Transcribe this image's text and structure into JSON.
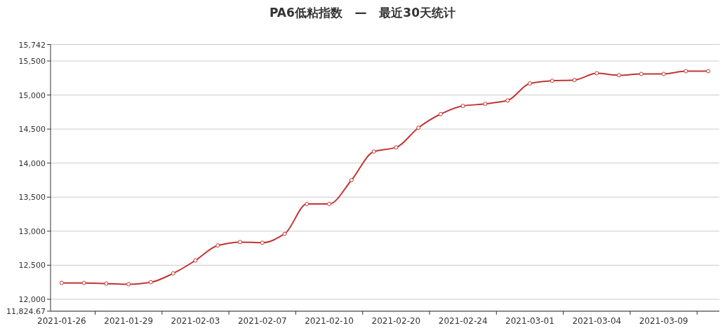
{
  "chart_data": {
    "type": "line",
    "title": "PA6低粘指数   —   最近30天统计",
    "categories": [
      "2021-01-26",
      null,
      null,
      "2021-01-29",
      null,
      null,
      "2021-02-03",
      null,
      null,
      "2021-02-07",
      null,
      null,
      "2021-02-10",
      null,
      null,
      "2021-02-20",
      null,
      null,
      "2021-02-24",
      null,
      null,
      "2021-03-01",
      null,
      null,
      "2021-03-04",
      null,
      null,
      "2021-03-09",
      null,
      null
    ],
    "series": [
      {
        "color": "#c23531",
        "values": [
          12240,
          12240,
          12230,
          12220,
          12250,
          12380,
          12570,
          12790,
          12840,
          12830,
          12960,
          13400,
          13400,
          13750,
          14170,
          14230,
          14520,
          14720,
          14840,
          14870,
          14920,
          15170,
          15210,
          15220,
          15320,
          15290,
          15310,
          15310,
          15350,
          15350
        ]
      }
    ],
    "ylim": [
      11824.67,
      15742
    ],
    "yticks": [
      {
        "value": 11824.67,
        "label": "11,824.67"
      },
      {
        "value": 12000,
        "label": "12,000"
      },
      {
        "value": 12500,
        "label": "12,500"
      },
      {
        "value": 13000,
        "label": "13,000"
      },
      {
        "value": 13500,
        "label": "13,500"
      },
      {
        "value": 14000,
        "label": "14,000"
      },
      {
        "value": 14500,
        "label": "14,500"
      },
      {
        "value": 15000,
        "label": "15,000"
      },
      {
        "value": 15500,
        "label": "15,500"
      },
      {
        "value": 15742,
        "label": "15,742"
      }
    ],
    "grid": "y",
    "marker": "circle",
    "line_style": "solid"
  }
}
